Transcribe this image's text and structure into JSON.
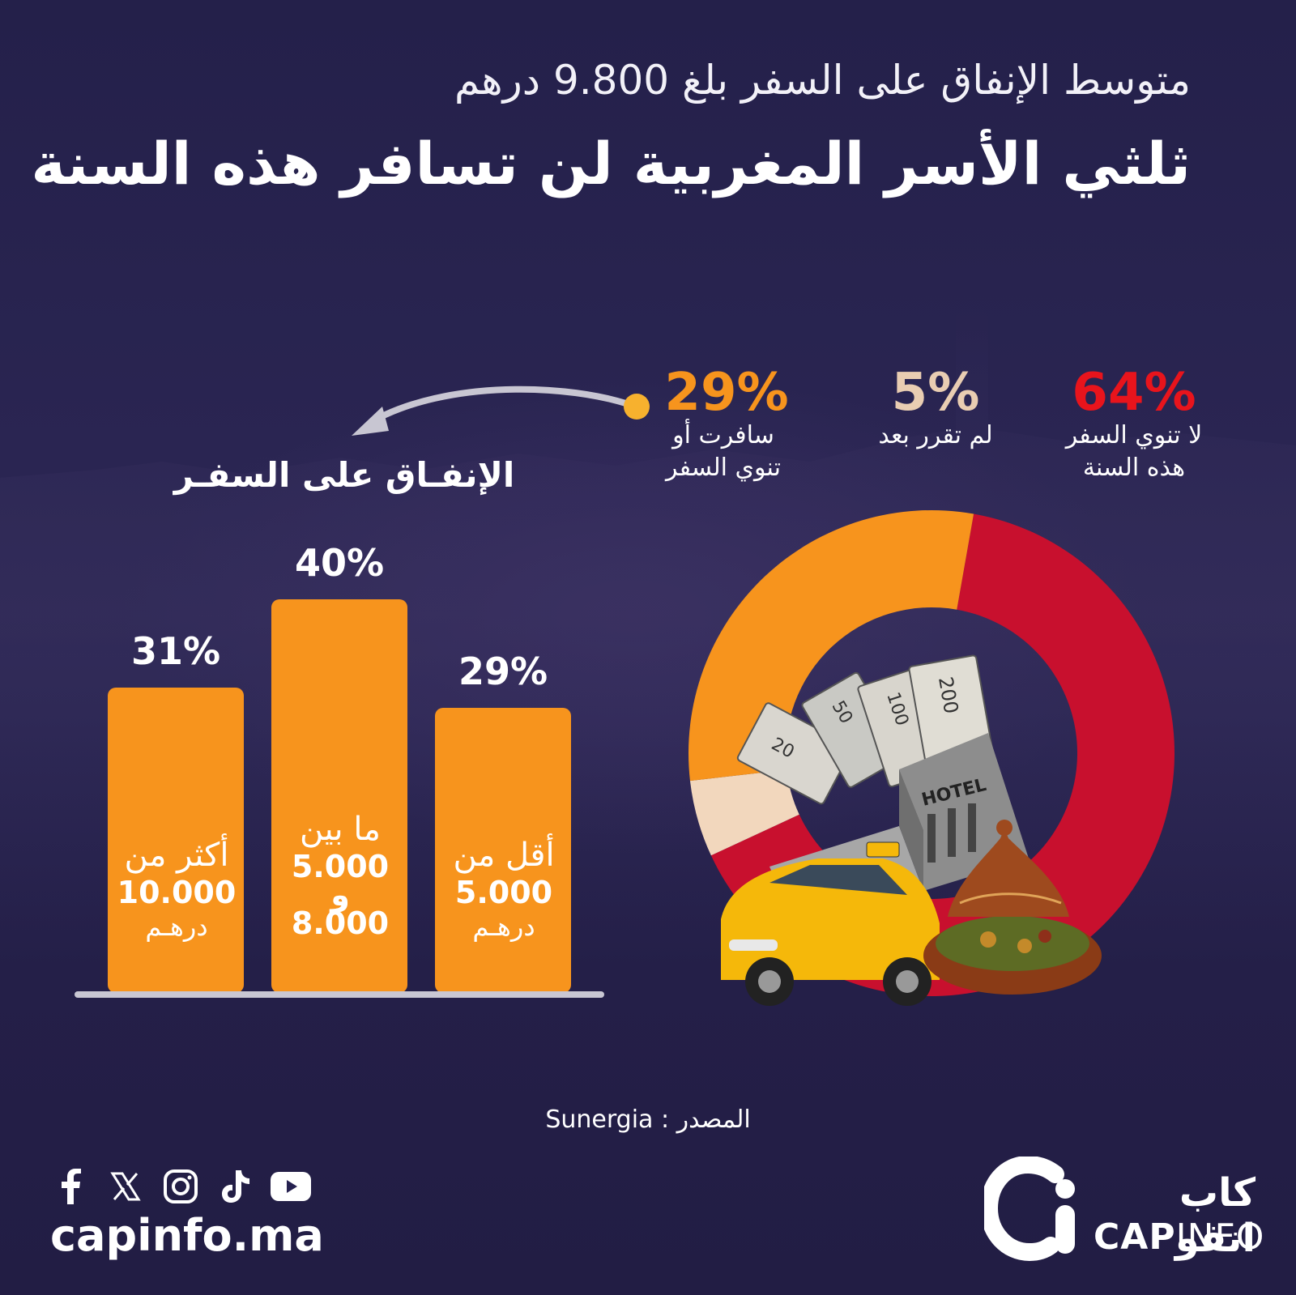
{
  "header": {
    "subtitle": "متوسط الإنفاق على السفر بلغ 9.800 درهم",
    "title": "ثلثي الأسر المغربية لن تسافر هذه السنة"
  },
  "donut": {
    "segments": [
      {
        "pct": "64%",
        "label_line1": "لا تنوي السفر",
        "label_line2": "هذه السنة",
        "color": "#c8102e",
        "value": 64
      },
      {
        "pct": "5%",
        "label_line1": "لم تقرر بعد",
        "label_line2": "",
        "color": "#f2d7bd",
        "value": 5
      },
      {
        "pct": "29%",
        "label_line1": "سافرت أو",
        "label_line2": "تنوي السفر",
        "color": "#f7941d",
        "value": 29
      }
    ],
    "hotel_sign": "HOTEL",
    "banknotes": [
      "200",
      "100",
      "50",
      "20"
    ]
  },
  "spending": {
    "title": "الإنفـاق على السفـر",
    "bars": [
      {
        "pct": "31%",
        "value": 31,
        "line1": "أكثر من",
        "line2": "10.000",
        "line3": "درهـم"
      },
      {
        "pct": "40%",
        "value": 40,
        "line1": "ما بين",
        "line2": "5.000",
        "line2b": "و",
        "line3": "8.000"
      },
      {
        "pct": "29%",
        "value": 29,
        "line1": "أقل من",
        "line2": "5.000",
        "line3": "درهـم"
      }
    ]
  },
  "chart_data": [
    {
      "type": "pie",
      "labels": [
        "لا تنوي السفر هذه السنة",
        "لم تقرر بعد",
        "سافرت أو تنوي السفر"
      ],
      "values": [
        64,
        5,
        29
      ]
    },
    {
      "type": "bar",
      "title": "الإنفـاق على السفـر",
      "categories": [
        "أكثر من 10.000 درهم",
        "ما بين 5.000 و 8.000",
        "أقل من 5.000 درهم"
      ],
      "values": [
        31,
        40,
        29
      ]
    }
  ],
  "source": "المصدر : Sunergia",
  "footer": {
    "site": "capinfo.ma",
    "brand_ar": "كاب انفو",
    "brand_en_bold": "CAP",
    "brand_en_light": "INFO",
    "social_icons": [
      "facebook-icon",
      "x-icon",
      "instagram-icon",
      "tiktok-icon",
      "youtube-icon"
    ]
  },
  "colors": {
    "accent_orange": "#f7941d",
    "accent_red": "#e8141c",
    "beige": "#e9cdb2",
    "background": "#262150"
  }
}
